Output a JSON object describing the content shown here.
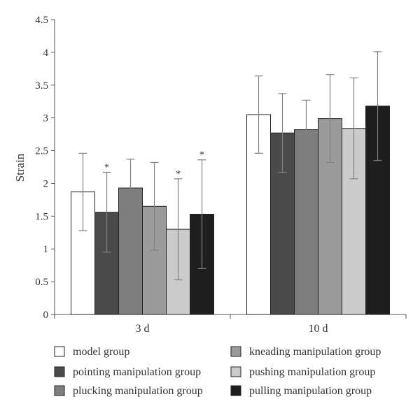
{
  "chart_data": {
    "type": "bar",
    "ylabel": "Strain",
    "xlabel": "",
    "ylim": [
      0,
      4.5
    ],
    "yticks": [
      "0",
      "0.5",
      "1",
      "1.5",
      "2",
      "2.5",
      "3",
      "3.5",
      "4",
      "4.5"
    ],
    "categories": [
      "3 d",
      "10 d"
    ],
    "grid": false,
    "legend_position": "bottom",
    "series": [
      {
        "name": "model group",
        "color": "#ffffff",
        "values": [
          1.87,
          3.05
        ],
        "error": [
          0.59,
          0.59
        ],
        "significant": [
          false,
          false
        ]
      },
      {
        "name": "pointing manipulation group",
        "color": "#4a4a4a",
        "values": [
          1.56,
          2.77
        ],
        "error": [
          0.61,
          0.6
        ],
        "significant": [
          true,
          false
        ]
      },
      {
        "name": "plucking manipulation group",
        "color": "#7e7e7e",
        "values": [
          1.93,
          2.82
        ],
        "error": [
          0.44,
          0.45
        ],
        "significant": [
          false,
          false
        ]
      },
      {
        "name": "kneading manipulation group",
        "color": "#9b9b9b",
        "values": [
          1.65,
          2.99
        ],
        "error": [
          0.67,
          0.67
        ],
        "significant": [
          false,
          false
        ]
      },
      {
        "name": "pushing manipulation group",
        "color": "#cbcbcb",
        "values": [
          1.3,
          2.84
        ],
        "error": [
          0.77,
          0.77
        ],
        "significant": [
          true,
          false
        ]
      },
      {
        "name": "pulling manipulation group",
        "color": "#1e1e1e",
        "values": [
          1.53,
          3.18
        ],
        "error": [
          0.83,
          0.83
        ],
        "significant": [
          true,
          false
        ]
      }
    ],
    "significance_marker": "*"
  }
}
